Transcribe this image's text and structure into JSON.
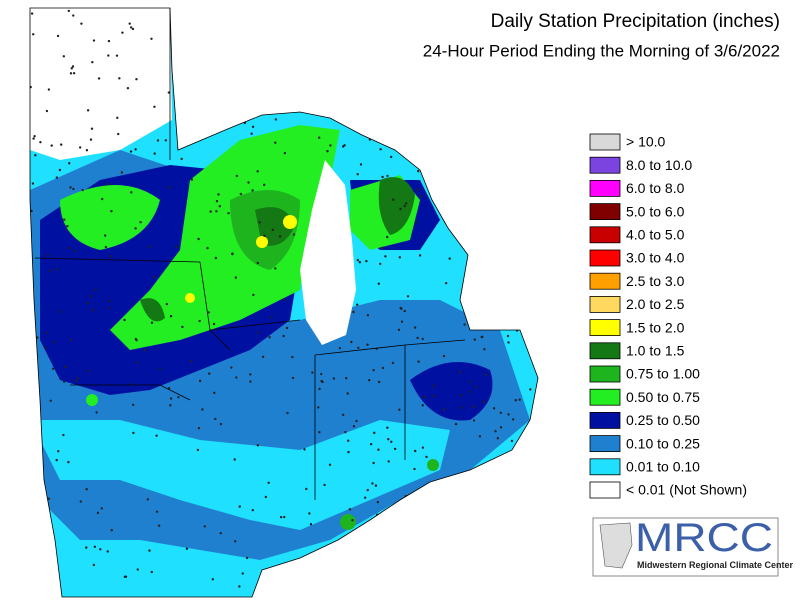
{
  "header": {
    "title": "Daily Station Precipitation (inches)",
    "subtitle": "24-Hour Period Ending the Morning of 3/6/2022"
  },
  "legend": {
    "items": [
      {
        "label": "> 10.0",
        "color": "#d9d9d9"
      },
      {
        "label": "8.0 to 10.0",
        "color": "#7b44e0"
      },
      {
        "label": "6.0 to 8.0",
        "color": "#ff00ff"
      },
      {
        "label": "5.0 to 6.0",
        "color": "#800000"
      },
      {
        "label": "4.0 to 5.0",
        "color": "#c80000"
      },
      {
        "label": "3.0 to 4.0",
        "color": "#ff0000"
      },
      {
        "label": "2.5 to 3.0",
        "color": "#ffa000"
      },
      {
        "label": "2.0 to 2.5",
        "color": "#ffd860"
      },
      {
        "label": "1.5 to 2.0",
        "color": "#ffff00"
      },
      {
        "label": "1.0 to 1.5",
        "color": "#147814"
      },
      {
        "label": "0.75 to 1.00",
        "color": "#1eb41e"
      },
      {
        "label": "0.50 to 0.75",
        "color": "#22ee22"
      },
      {
        "label": "0.25 to 0.50",
        "color": "#0010a0"
      },
      {
        "label": "0.10 to 0.25",
        "color": "#2080d0"
      },
      {
        "label": "0.01 to 0.10",
        "color": "#20e0ff"
      },
      {
        "label": "< 0.01 (Not Shown)",
        "color": "#ffffff"
      }
    ]
  },
  "logo": {
    "name": "MRCC",
    "full_name": "Midwestern Regional Climate Center"
  }
}
